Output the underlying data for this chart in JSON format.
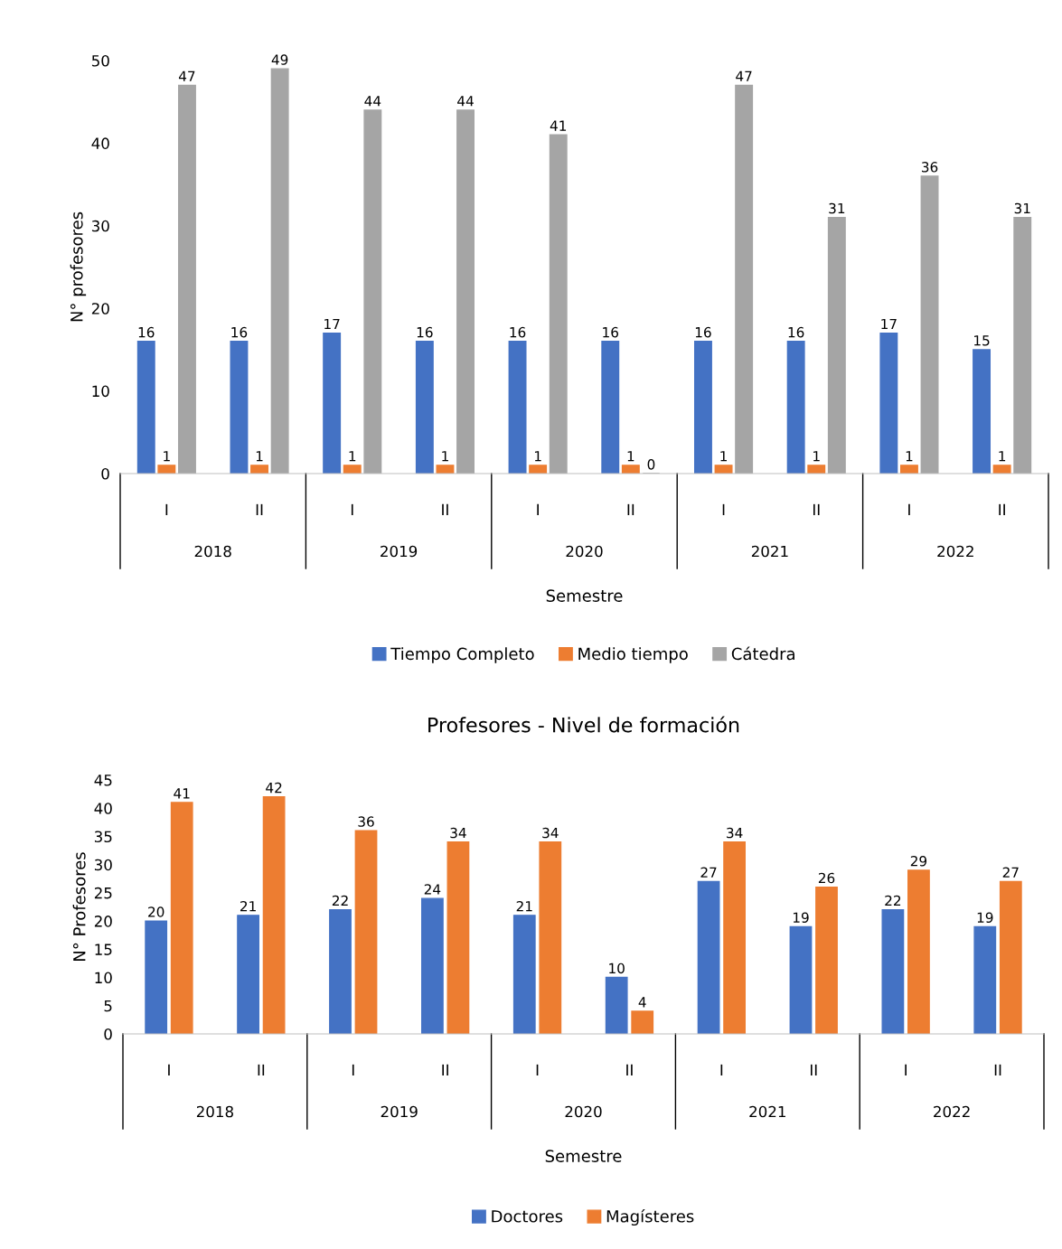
{
  "chart_data": [
    {
      "type": "bar",
      "xlabel": "Semestre",
      "ylabel": "N° profesores",
      "categories": [
        "I",
        "II",
        "I",
        "II",
        "I",
        "II",
        "I",
        "II",
        "I",
        "II"
      ],
      "annotations": [
        "2018",
        "2019",
        "2020",
        "2021",
        "2022"
      ],
      "ylim": [
        0,
        50
      ],
      "yticks": [
        0,
        10,
        20,
        30,
        40,
        50
      ],
      "grid": false,
      "legend": "bottom",
      "data_labels": true,
      "series": [
        {
          "name": "Tiempo Completo",
          "color": "#4472c4",
          "values": [
            16,
            16,
            17,
            16,
            16,
            16,
            16,
            16,
            17,
            15
          ]
        },
        {
          "name": "Medio tiempo",
          "color": "#ed7d31",
          "values": [
            1,
            1,
            1,
            1,
            1,
            1,
            1,
            1,
            1,
            1
          ]
        },
        {
          "name": "Cátedra",
          "color": "#a5a5a5",
          "values": [
            47,
            49,
            44,
            44,
            41,
            0,
            47,
            31,
            36,
            31
          ]
        }
      ]
    },
    {
      "type": "bar",
      "title": "Profesores - Nivel de formación",
      "xlabel": "Semestre",
      "ylabel": "N° Profesores",
      "categories": [
        "I",
        "II",
        "I",
        "II",
        "I",
        "II",
        "I",
        "II",
        "I",
        "II"
      ],
      "annotations": [
        "2018",
        "2019",
        "2020",
        "2021",
        "2022"
      ],
      "ylim": [
        0,
        45
      ],
      "yticks": [
        0,
        5,
        10,
        15,
        20,
        25,
        30,
        35,
        40,
        45
      ],
      "grid": false,
      "legend": "bottom",
      "data_labels": true,
      "series": [
        {
          "name": "Doctores",
          "color": "#4472c4",
          "values": [
            20,
            21,
            22,
            24,
            21,
            10,
            27,
            19,
            22,
            19
          ]
        },
        {
          "name": "Magísteres",
          "color": "#ed7d31",
          "values": [
            41,
            42,
            36,
            34,
            34,
            4,
            34,
            26,
            29,
            27
          ]
        }
      ]
    }
  ]
}
